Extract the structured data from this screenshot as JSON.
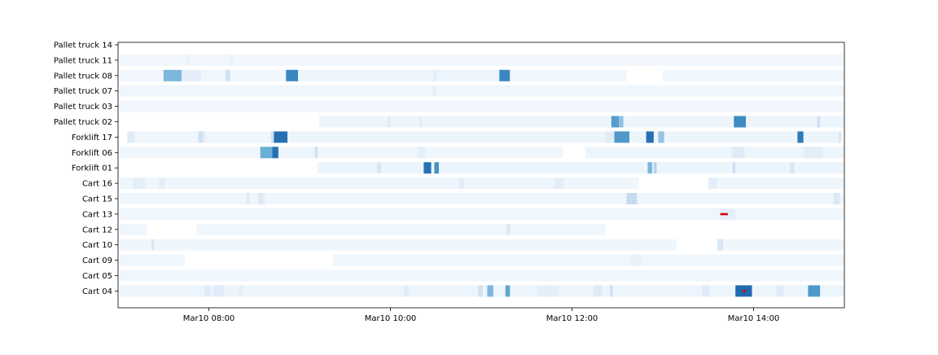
{
  "chart_data": {
    "type": "heatmap",
    "title": "",
    "xlabel": "",
    "ylabel": "",
    "x_axis": {
      "kind": "time",
      "date": "Mar10",
      "xlim": [
        "07:00",
        "15:00"
      ],
      "tick_labels": [
        "Mar10 08:00",
        "Mar10 10:00",
        "Mar10 12:00",
        "Mar10 14:00"
      ],
      "tick_values": [
        "08:00",
        "10:00",
        "12:00",
        "14:00"
      ]
    },
    "grid": false,
    "legend": "none",
    "colormap": "Blues",
    "level_scale": "0-1",
    "marker_color": "#dd0000",
    "rows": [
      {
        "label": "Pallet truck 14",
        "segments": []
      },
      {
        "label": "Pallet truck 11",
        "segments": [
          {
            "start": "07:01",
            "end": "15:00",
            "level": 0.03
          },
          {
            "start": "07:45",
            "end": "07:47",
            "level": 0.07
          },
          {
            "start": "08:14",
            "end": "08:16",
            "level": 0.07
          }
        ]
      },
      {
        "label": "Pallet truck 08",
        "segments": [
          {
            "start": "07:01",
            "end": "07:30",
            "level": 0.03
          },
          {
            "start": "07:30",
            "end": "07:42",
            "level": 0.45
          },
          {
            "start": "07:42",
            "end": "07:55",
            "level": 0.1
          },
          {
            "start": "07:55",
            "end": "08:11",
            "level": 0.04
          },
          {
            "start": "08:11",
            "end": "08:14",
            "level": 0.2
          },
          {
            "start": "08:14",
            "end": "08:51",
            "level": 0.04
          },
          {
            "start": "08:51",
            "end": "08:59",
            "level": 0.72
          },
          {
            "start": "08:59",
            "end": "10:28",
            "level": 0.05
          },
          {
            "start": "10:28",
            "end": "10:31",
            "level": 0.1
          },
          {
            "start": "10:31",
            "end": "11:12",
            "level": 0.05
          },
          {
            "start": "11:12",
            "end": "11:19",
            "level": 0.72
          },
          {
            "start": "11:19",
            "end": "12:36",
            "level": 0.04
          },
          {
            "start": "13:00",
            "end": "15:00",
            "level": 0.04
          }
        ]
      },
      {
        "label": "Pallet truck 07",
        "segments": [
          {
            "start": "07:01",
            "end": "15:00",
            "level": 0.04
          },
          {
            "start": "10:28",
            "end": "10:30",
            "level": 0.1
          }
        ]
      },
      {
        "label": "Pallet truck 03",
        "segments": [
          {
            "start": "07:01",
            "end": "15:00",
            "level": 0.03
          }
        ]
      },
      {
        "label": "Pallet truck 02",
        "segments": [
          {
            "start": "09:13",
            "end": "12:26",
            "level": 0.05
          },
          {
            "start": "09:58",
            "end": "10:00",
            "level": 0.12
          },
          {
            "start": "10:19",
            "end": "10:21",
            "level": 0.1
          },
          {
            "start": "12:26",
            "end": "12:31",
            "level": 0.6
          },
          {
            "start": "12:31",
            "end": "12:34",
            "level": 0.4
          },
          {
            "start": "12:34",
            "end": "13:47",
            "level": 0.05
          },
          {
            "start": "13:47",
            "end": "13:55",
            "level": 0.7
          },
          {
            "start": "13:55",
            "end": "14:42",
            "level": 0.05
          },
          {
            "start": "14:42",
            "end": "14:44",
            "level": 0.2
          },
          {
            "start": "14:44",
            "end": "15:00",
            "level": 0.05
          }
        ]
      },
      {
        "label": "Forklift 17",
        "segments": [
          {
            "start": "07:06",
            "end": "07:11",
            "level": 0.12
          },
          {
            "start": "07:11",
            "end": "07:53",
            "level": 0.04
          },
          {
            "start": "07:53",
            "end": "07:56",
            "level": 0.2
          },
          {
            "start": "07:56",
            "end": "07:58",
            "level": 0.1
          },
          {
            "start": "07:58",
            "end": "08:41",
            "level": 0.04
          },
          {
            "start": "08:41",
            "end": "08:43",
            "level": 0.2
          },
          {
            "start": "08:43",
            "end": "08:52",
            "level": 0.82
          },
          {
            "start": "08:52",
            "end": "12:22",
            "level": 0.05
          },
          {
            "start": "12:22",
            "end": "12:28",
            "level": 0.12
          },
          {
            "start": "12:28",
            "end": "12:38",
            "level": 0.62
          },
          {
            "start": "12:38",
            "end": "12:49",
            "level": 0.05
          },
          {
            "start": "12:49",
            "end": "12:54",
            "level": 0.82
          },
          {
            "start": "12:54",
            "end": "12:57",
            "level": 0.05
          },
          {
            "start": "12:57",
            "end": "13:01",
            "level": 0.38
          },
          {
            "start": "13:01",
            "end": "14:29",
            "level": 0.05
          },
          {
            "start": "14:29",
            "end": "14:33",
            "level": 0.78
          },
          {
            "start": "14:33",
            "end": "14:56",
            "level": 0.05
          },
          {
            "start": "14:56",
            "end": "14:58",
            "level": 0.15
          }
        ]
      },
      {
        "label": "Forklift 06",
        "segments": [
          {
            "start": "07:01",
            "end": "08:34",
            "level": 0.04
          },
          {
            "start": "08:34",
            "end": "08:42",
            "level": 0.5
          },
          {
            "start": "08:42",
            "end": "08:46",
            "level": 0.82
          },
          {
            "start": "08:46",
            "end": "09:10",
            "level": 0.05
          },
          {
            "start": "09:10",
            "end": "09:12",
            "level": 0.2
          },
          {
            "start": "09:12",
            "end": "11:54",
            "level": 0.04
          },
          {
            "start": "10:18",
            "end": "10:23",
            "level": 0.1
          },
          {
            "start": "12:09",
            "end": "15:00",
            "level": 0.05
          },
          {
            "start": "13:46",
            "end": "13:54",
            "level": 0.12
          },
          {
            "start": "14:33",
            "end": "14:46",
            "level": 0.1
          }
        ]
      },
      {
        "label": "Forklift 01",
        "segments": [
          {
            "start": "09:12",
            "end": "10:22",
            "level": 0.05
          },
          {
            "start": "09:51",
            "end": "09:54",
            "level": 0.15
          },
          {
            "start": "10:22",
            "end": "10:27",
            "level": 0.82
          },
          {
            "start": "10:27",
            "end": "10:29",
            "level": 0.05
          },
          {
            "start": "10:29",
            "end": "10:32",
            "level": 0.65
          },
          {
            "start": "10:32",
            "end": "12:50",
            "level": 0.05
          },
          {
            "start": "12:50",
            "end": "12:53",
            "level": 0.45
          },
          {
            "start": "12:53",
            "end": "12:54",
            "level": 0.05
          },
          {
            "start": "12:54",
            "end": "12:56",
            "level": 0.3
          },
          {
            "start": "12:56",
            "end": "15:00",
            "level": 0.05
          },
          {
            "start": "13:46",
            "end": "13:48",
            "level": 0.2
          },
          {
            "start": "14:24",
            "end": "14:27",
            "level": 0.15
          }
        ]
      },
      {
        "label": "Cart 16",
        "segments": [
          {
            "start": "07:01",
            "end": "07:10",
            "level": 0.04
          },
          {
            "start": "07:10",
            "end": "07:18",
            "level": 0.1
          },
          {
            "start": "07:18",
            "end": "07:27",
            "level": 0.04
          },
          {
            "start": "07:27",
            "end": "07:31",
            "level": 0.1
          },
          {
            "start": "07:31",
            "end": "10:45",
            "level": 0.04
          },
          {
            "start": "10:45",
            "end": "10:49",
            "level": 0.1
          },
          {
            "start": "10:49",
            "end": "11:48",
            "level": 0.04
          },
          {
            "start": "11:48",
            "end": "11:55",
            "level": 0.1
          },
          {
            "start": "11:55",
            "end": "12:44",
            "level": 0.04
          },
          {
            "start": "13:30",
            "end": "13:36",
            "level": 0.1
          },
          {
            "start": "13:36",
            "end": "15:00",
            "level": 0.04
          }
        ]
      },
      {
        "label": "Cart 15",
        "segments": [
          {
            "start": "07:01",
            "end": "15:00",
            "level": 0.04
          },
          {
            "start": "08:25",
            "end": "08:27",
            "level": 0.12
          },
          {
            "start": "08:33",
            "end": "08:35",
            "level": 0.15
          },
          {
            "start": "08:35",
            "end": "08:37",
            "level": 0.1
          },
          {
            "start": "12:36",
            "end": "12:43",
            "level": 0.25
          },
          {
            "start": "14:53",
            "end": "14:57",
            "level": 0.15
          }
        ]
      },
      {
        "label": "Cart 13",
        "segments": [
          {
            "start": "07:01",
            "end": "13:38",
            "level": 0.04
          },
          {
            "start": "13:38",
            "end": "13:48",
            "level": 0.1
          },
          {
            "start": "13:48",
            "end": "15:00",
            "level": 0.04
          }
        ]
      },
      {
        "label": "Cart 12",
        "segments": [
          {
            "start": "07:01",
            "end": "07:19",
            "level": 0.04
          },
          {
            "start": "07:52",
            "end": "12:22",
            "level": 0.04
          },
          {
            "start": "11:17",
            "end": "11:19",
            "level": 0.15
          }
        ]
      },
      {
        "label": "Cart 10",
        "segments": [
          {
            "start": "07:01",
            "end": "07:22",
            "level": 0.04
          },
          {
            "start": "07:22",
            "end": "07:24",
            "level": 0.15
          },
          {
            "start": "07:24",
            "end": "13:09",
            "level": 0.04
          },
          {
            "start": "13:36",
            "end": "13:40",
            "level": 0.15
          },
          {
            "start": "13:40",
            "end": "15:00",
            "level": 0.04
          }
        ]
      },
      {
        "label": "Cart 09",
        "segments": [
          {
            "start": "07:01",
            "end": "07:44",
            "level": 0.04
          },
          {
            "start": "09:22",
            "end": "15:00",
            "level": 0.04
          },
          {
            "start": "12:38",
            "end": "12:46",
            "level": 0.07
          }
        ]
      },
      {
        "label": "Cart 05",
        "segments": [
          {
            "start": "07:01",
            "end": "15:00",
            "level": 0.04
          }
        ]
      },
      {
        "label": "Cart 04",
        "segments": [
          {
            "start": "07:01",
            "end": "13:48",
            "level": 0.05
          },
          {
            "start": "07:57",
            "end": "08:01",
            "level": 0.12
          },
          {
            "start": "08:03",
            "end": "08:10",
            "level": 0.12
          },
          {
            "start": "08:20",
            "end": "08:22",
            "level": 0.1
          },
          {
            "start": "10:09",
            "end": "10:12",
            "level": 0.12
          },
          {
            "start": "10:58",
            "end": "11:01",
            "level": 0.2
          },
          {
            "start": "11:04",
            "end": "11:08",
            "level": 0.45
          },
          {
            "start": "11:16",
            "end": "11:19",
            "level": 0.55
          },
          {
            "start": "11:37",
            "end": "11:51",
            "level": 0.1
          },
          {
            "start": "12:14",
            "end": "12:20",
            "level": 0.12
          },
          {
            "start": "12:25",
            "end": "12:27",
            "level": 0.2
          },
          {
            "start": "13:26",
            "end": "13:31",
            "level": 0.12
          },
          {
            "start": "13:48",
            "end": "13:59",
            "level": 0.85
          },
          {
            "start": "13:59",
            "end": "14:15",
            "level": 0.05
          },
          {
            "start": "14:15",
            "end": "14:20",
            "level": 0.12
          },
          {
            "start": "14:20",
            "end": "14:36",
            "level": 0.05
          },
          {
            "start": "14:36",
            "end": "14:44",
            "level": 0.62
          },
          {
            "start": "14:44",
            "end": "15:00",
            "level": 0.05
          }
        ]
      }
    ],
    "markers": [
      {
        "row": "Cart 13",
        "start": "13:38",
        "end": "13:43"
      },
      {
        "row": "Cart 04",
        "start": "13:53",
        "end": "13:55"
      }
    ]
  }
}
